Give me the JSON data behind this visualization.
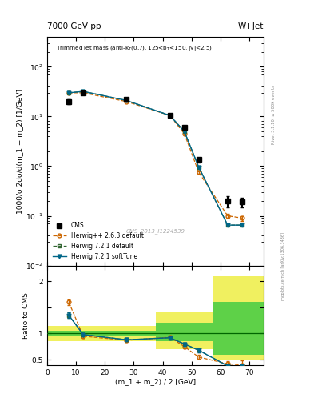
{
  "title_top": "7000 GeV pp",
  "title_right": "W+Jet",
  "inner_title": "Trimmed jet mass (anti-kₜ(0.7), 125<pₜ<150, |y|<2.5)",
  "ylabel_main": "1000/σ 2dσ/d(m_1 + m_2) [1/GeV]",
  "ylabel_ratio": "Ratio to CMS",
  "xlabel": "(m_1 + m_2) / 2 [GeV]",
  "watermark": "CMS_2013_I1224539",
  "rivet_label": "Rivet 3.1.10, ≥ 500k events",
  "mcplots_label": "mcplots.cern.ch [arXiv:1306.3436]",
  "cms_x": [
    7.5,
    12.5,
    27.5,
    42.5,
    47.5,
    52.5,
    62.5,
    67.5
  ],
  "cms_y": [
    20.0,
    30.0,
    22.0,
    10.7,
    6.0,
    1.35,
    0.2,
    0.19
  ],
  "cms_yerr": [
    2.0,
    2.5,
    2.0,
    0.8,
    0.5,
    0.15,
    0.05,
    0.04
  ],
  "herwig263_x": [
    7.5,
    12.5,
    27.5,
    42.5,
    47.5,
    52.5,
    62.5,
    67.5
  ],
  "herwig263_y": [
    30.0,
    30.0,
    20.0,
    10.5,
    4.5,
    0.75,
    0.1,
    0.09
  ],
  "herwig263_yerr": [
    0.5,
    0.5,
    0.4,
    0.3,
    0.2,
    0.04,
    0.01,
    0.01
  ],
  "herwig721d_x": [
    7.5,
    12.5,
    27.5,
    42.5,
    47.5,
    52.5,
    62.5,
    67.5
  ],
  "herwig721d_y": [
    30.0,
    32.0,
    21.0,
    10.5,
    5.0,
    0.95,
    0.065,
    0.065
  ],
  "herwig721d_yerr": [
    0.5,
    0.5,
    0.4,
    0.3,
    0.2,
    0.04,
    0.003,
    0.003
  ],
  "herwig721s_x": [
    7.5,
    12.5,
    27.5,
    42.5,
    47.5,
    52.5,
    62.5,
    67.5
  ],
  "herwig721s_y": [
    30.0,
    32.0,
    21.0,
    10.5,
    5.0,
    0.95,
    0.065,
    0.065
  ],
  "herwig721s_yerr": [
    0.5,
    0.5,
    0.4,
    0.3,
    0.2,
    0.04,
    0.003,
    0.003
  ],
  "ratio_herwig263_x": [
    7.5,
    12.5,
    27.5,
    42.5,
    47.5,
    52.5,
    62.5,
    67.5
  ],
  "ratio_herwig263_y": [
    1.6,
    0.95,
    0.87,
    0.93,
    0.75,
    0.55,
    0.42,
    0.4
  ],
  "ratio_herwig263_yerr": [
    0.05,
    0.03,
    0.03,
    0.03,
    0.03,
    0.04,
    0.05,
    0.08
  ],
  "ratio_herwig721d_x": [
    7.5,
    12.5,
    27.5,
    42.5,
    47.5,
    52.5,
    62.5,
    67.5
  ],
  "ratio_herwig721d_y": [
    1.35,
    0.98,
    0.88,
    0.92,
    0.8,
    0.68,
    0.38,
    0.38
  ],
  "ratio_herwig721d_yerr": [
    0.05,
    0.03,
    0.03,
    0.03,
    0.03,
    0.04,
    0.02,
    0.02
  ],
  "ratio_herwig721s_x": [
    7.5,
    12.5,
    27.5,
    42.5,
    47.5,
    52.5,
    62.5,
    67.5
  ],
  "ratio_herwig721s_y": [
    1.35,
    0.98,
    0.88,
    0.92,
    0.8,
    0.68,
    0.38,
    0.38
  ],
  "ratio_herwig721s_yerr": [
    0.05,
    0.03,
    0.03,
    0.03,
    0.03,
    0.04,
    0.02,
    0.02
  ],
  "color_cms": "#000000",
  "color_herwig263": "#cc6600",
  "color_herwig721d": "#336633",
  "color_herwig721s": "#006688",
  "color_band_yellow": "#eeee44",
  "color_band_green": "#44cc44",
  "main_ylim": [
    0.01,
    400
  ],
  "ratio_ylim": [
    0.4,
    2.3
  ],
  "xlim": [
    0,
    75
  ],
  "xticks": [
    0,
    10,
    20,
    30,
    40,
    50,
    60,
    70
  ]
}
